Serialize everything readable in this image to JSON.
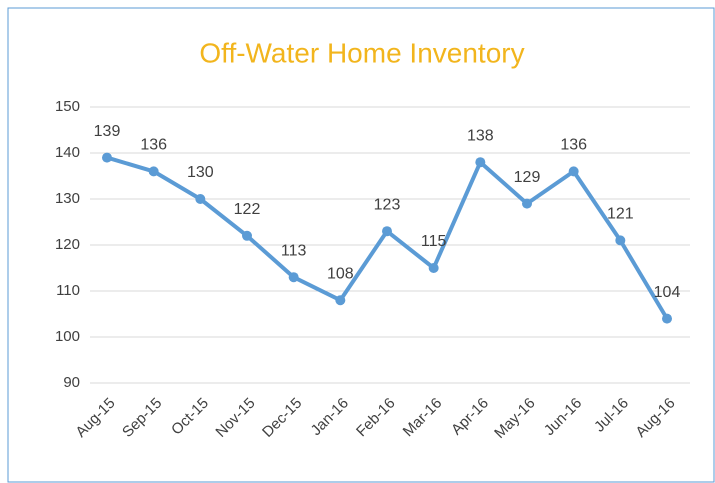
{
  "chart_data": {
    "type": "line",
    "title": "Off-Water Home Inventory",
    "categories": [
      "Aug-15",
      "Sep-15",
      "Oct-15",
      "Nov-15",
      "Dec-15",
      "Jan-16",
      "Feb-16",
      "Mar-16",
      "Apr-16",
      "May-16",
      "Jun-16",
      "Jul-16",
      "Aug-16"
    ],
    "values": [
      139,
      136,
      130,
      122,
      113,
      108,
      123,
      115,
      138,
      129,
      136,
      121,
      104
    ],
    "color": "#5b9bd5",
    "title_color": "#f2b51d",
    "ylim": [
      90,
      150
    ],
    "yticks": [
      90,
      100,
      110,
      120,
      130,
      140,
      150
    ],
    "grid": true
  }
}
